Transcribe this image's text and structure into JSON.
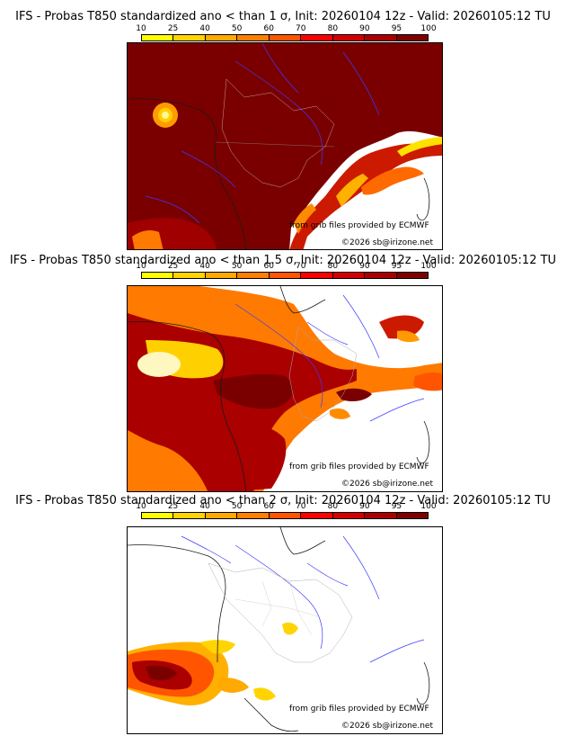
{
  "panels": [
    {
      "title": "IFS - Probas T850  standardized ano < than 1 σ, Init: 20260104 12z - Valid: 20260105:12 TU",
      "credit_source": "from grib files provided by ECMWF",
      "credit_copyright": "©2026 sb@irizone.net",
      "sigma": 1
    },
    {
      "title": "IFS - Probas T850  standardized ano < than 1.5 σ, Init: 20260104 12z - Valid: 20260105:12 TU",
      "credit_source": "from grib files provided by ECMWF",
      "credit_copyright": "©2026 sb@irizone.net",
      "sigma": 1.5
    },
    {
      "title": "IFS - Probas T850  standardized ano < than 2 σ, Init: 20260104 12z - Valid: 20260105:12 TU",
      "credit_source": "from grib files provided by ECMWF",
      "credit_copyright": "©2026 sb@irizone.net",
      "sigma": 2
    }
  ],
  "legend": {
    "ticks": [
      "10",
      "25",
      "40",
      "50",
      "60",
      "70",
      "80",
      "90",
      "95",
      "100"
    ],
    "colors": [
      "#ffff00",
      "#ffd400",
      "#ffaa00",
      "#ff8000",
      "#ff5500",
      "#ff0000",
      "#d40000",
      "#aa0000",
      "#800000"
    ]
  }
}
